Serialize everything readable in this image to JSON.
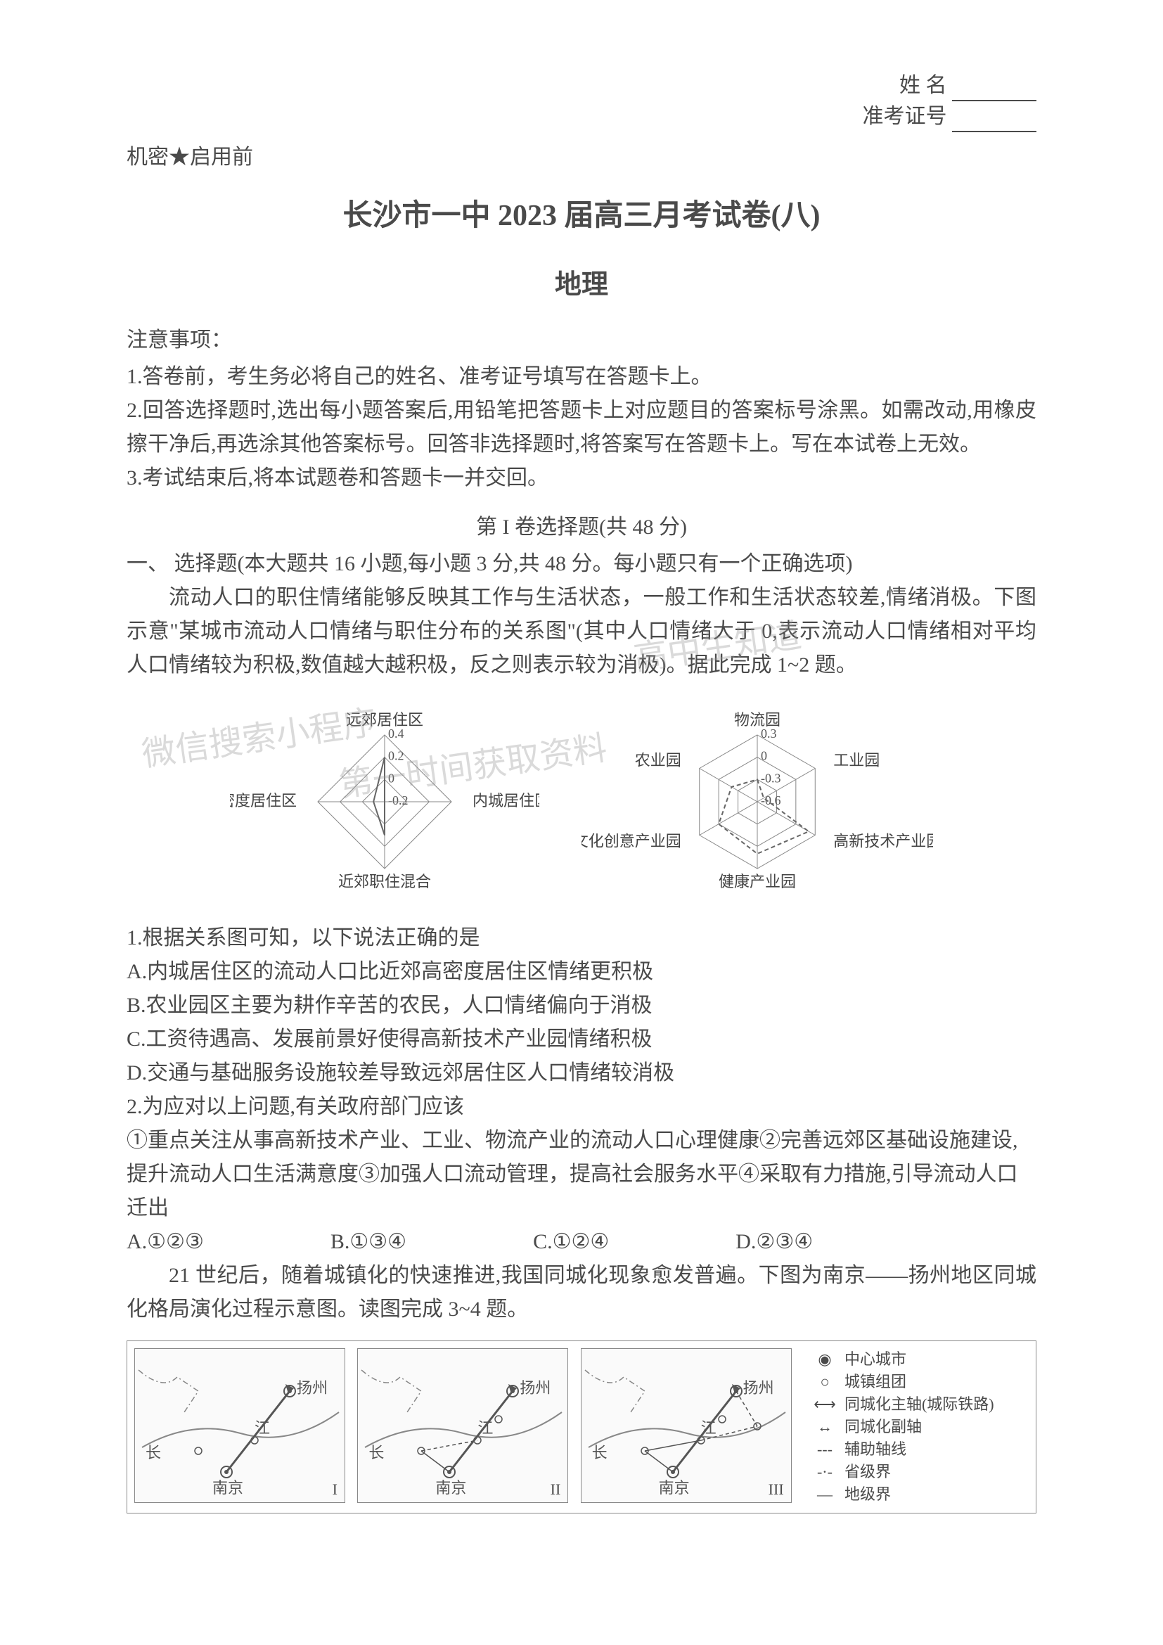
{
  "header": {
    "name_label": "姓    名",
    "exam_id_label": "准考证号",
    "confidential": "机密★启用前"
  },
  "title": "长沙市一中 2023 届高三月考试卷(八)",
  "subject": "地理",
  "notices": {
    "header": "注意事项：",
    "items": [
      "1.答卷前，考生务必将自己的姓名、准考证号填写在答题卡上。",
      "2.回答选择题时,选出每小题答案后,用铅笔把答题卡上对应题目的答案标号涂黑。如需改动,用橡皮擦干净后,再选涂其他答案标号。回答非选择题时,将答案写在答题卡上。写在本试卷上无效。",
      "3.考试结束后,将本试题卷和答题卡一并交回。"
    ]
  },
  "section1": {
    "header": "第 I 卷选择题(共 48 分)",
    "intro": "一、 选择题(本大题共 16 小题,每小题 3 分,共 48 分。每小题只有一个正确选项)"
  },
  "passage1": "流动人口的职住情绪能够反映其工作与生活状态，一般工作和生活状态较差,情绪消极。下图示意\"某城市流动人口情绪与职住分布的关系图\"(其中人口情绪大于 0,表示流动人口情绪相对平均人口情绪较为积极,数值越大越积极，反之则表示较为消极)。据此完成 1~2 题。",
  "radar1": {
    "type": "radar",
    "axes": [
      "远郊居住区",
      "内城居住区",
      "近郊职住混合",
      "近郊高密度居住区"
    ],
    "ticks": [
      "0.4",
      "0.2",
      "0",
      "-0.2"
    ],
    "values": [
      0.2,
      -0.2,
      0.1,
      -0.1
    ],
    "line_color": "#666666",
    "fill_color": "none",
    "grid_color": "#888888",
    "background_color": "#ffffff",
    "label_fontsize": 22,
    "tick_fontsize": 18,
    "size": 340
  },
  "radar2": {
    "type": "radar",
    "axes": [
      "物流园",
      "工业园",
      "高新技术产业园",
      "健康产业园",
      "文化创意产业园",
      "农业园"
    ],
    "ticks": [
      "0.3",
      "0",
      "-0.3",
      "-0.6"
    ],
    "values": [
      -0.3,
      -0.5,
      0.2,
      0.1,
      0.0,
      -0.2
    ],
    "line_color": "#666666",
    "dash_pattern": "6,4",
    "grid_color": "#888888",
    "background_color": "#ffffff",
    "label_fontsize": 22,
    "tick_fontsize": 18,
    "size": 360
  },
  "q1": {
    "stem": "1.根据关系图可知，以下说法正确的是",
    "options": [
      "A.内城居住区的流动人口比近郊高密度居住区情绪更积极",
      "B.农业园区主要为耕作辛苦的农民，人口情绪偏向于消极",
      "C.工资待遇高、发展前景好使得高新技术产业园情绪积极",
      "D.交通与基础服务设施较差导致远郊居住区人口情绪较消极"
    ]
  },
  "q2": {
    "stem": "2.为应对以上问题,有关政府部门应该",
    "statements": "①重点关注从事高新技术产业、工业、物流产业的流动人口心理健康②完善远郊区基础设施建设,提升流动人口生活满意度③加强人口流动管理，提高社会服务水平④采取有力措施,引导流动人口迁出",
    "options": {
      "A": "A.①②③",
      "B": "B.①③④",
      "C": "C.①②④",
      "D": "D.②③④"
    }
  },
  "passage2": "21 世纪后，随着城镇化的快速推进,我国同城化现象愈发普遍。下图为南京——扬州地区同城化格局演化过程示意图。读图完成 3~4 题。",
  "maps": {
    "panels": [
      "I",
      "II",
      "III"
    ],
    "city_labels": [
      "扬州",
      "江",
      "长",
      "南京"
    ],
    "legend": [
      {
        "symbol": "◉",
        "label": "中心城市"
      },
      {
        "symbol": "○",
        "label": "城镇组团"
      },
      {
        "symbol": "⟷",
        "label": "同城化主轴(城际铁路)",
        "style": "solid-arrow"
      },
      {
        "symbol": "↔",
        "label": "同城化副轴",
        "style": "thin-arrow"
      },
      {
        "symbol": "---",
        "label": "辅助轴线",
        "style": "dashed"
      },
      {
        "symbol": "-·-",
        "label": "省级界",
        "style": "dashdot"
      },
      {
        "symbol": "—",
        "label": "地级界",
        "style": "solid"
      }
    ],
    "border_color": "#888888",
    "background_color": "#fafafa"
  },
  "watermarks": {
    "line1": "微信搜索小程序",
    "line2": "高中生知道",
    "line3": "第一时间获取资料"
  }
}
